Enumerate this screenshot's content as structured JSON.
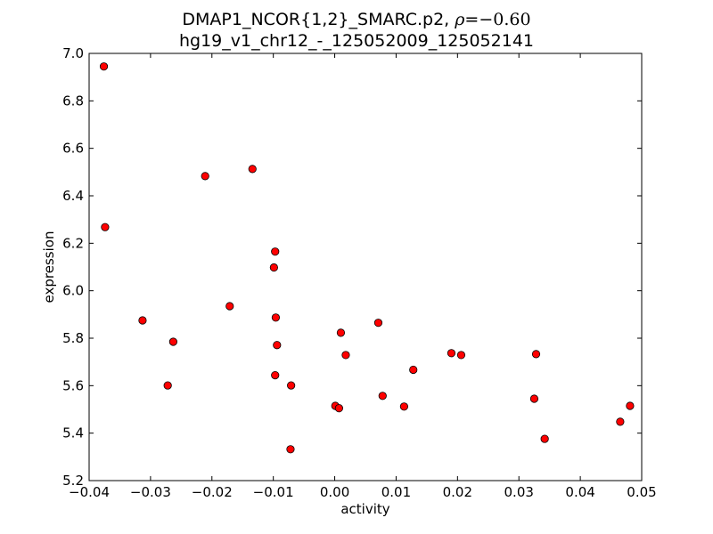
{
  "chart_data": {
    "type": "scatter",
    "title_line1_prefix": "DMAP1_NCOR{1,2}_SMARC.p2, ",
    "title_rho_symbol": "ρ",
    "title_rho_value": "=−0.60",
    "title_line2": "hg19_v1_chr12_-_125052009_125052141",
    "xlabel": "activity",
    "ylabel": "expression",
    "xlim": [
      -0.04,
      0.05
    ],
    "ylim": [
      5.2,
      7.0
    ],
    "xticks": [
      -0.04,
      -0.03,
      -0.02,
      -0.01,
      0.0,
      0.01,
      0.02,
      0.03,
      0.04,
      0.05
    ],
    "xtick_labels": [
      "−0.04",
      "−0.03",
      "−0.02",
      "−0.01",
      "0.00",
      "0.01",
      "0.02",
      "0.03",
      "0.04",
      "0.05"
    ],
    "yticks": [
      5.2,
      5.4,
      5.6,
      5.8,
      6.0,
      6.2,
      6.4,
      6.6,
      6.8,
      7.0
    ],
    "ytick_labels": [
      "5.2",
      "5.4",
      "5.6",
      "5.8",
      "6.0",
      "6.2",
      "6.4",
      "6.6",
      "6.8",
      "7.0"
    ],
    "grid": false,
    "marker_color": "#ff0000",
    "marker_edge_color": "#000000",
    "points": [
      {
        "x": -0.0376,
        "y": 6.945
      },
      {
        "x": -0.0374,
        "y": 6.268
      },
      {
        "x": -0.0313,
        "y": 5.875
      },
      {
        "x": -0.0263,
        "y": 5.785
      },
      {
        "x": -0.0272,
        "y": 5.601
      },
      {
        "x": -0.0211,
        "y": 6.483
      },
      {
        "x": -0.0171,
        "y": 5.935
      },
      {
        "x": -0.0134,
        "y": 6.513
      },
      {
        "x": -0.0097,
        "y": 6.165
      },
      {
        "x": -0.0099,
        "y": 6.098
      },
      {
        "x": -0.0096,
        "y": 5.887
      },
      {
        "x": -0.0094,
        "y": 5.771
      },
      {
        "x": -0.0097,
        "y": 5.644
      },
      {
        "x": -0.0071,
        "y": 5.601
      },
      {
        "x": -0.0072,
        "y": 5.332
      },
      {
        "x": 0.0001,
        "y": 5.515
      },
      {
        "x": 0.0007,
        "y": 5.505
      },
      {
        "x": 0.001,
        "y": 5.823
      },
      {
        "x": 0.0018,
        "y": 5.729
      },
      {
        "x": 0.0071,
        "y": 5.865
      },
      {
        "x": 0.0078,
        "y": 5.557
      },
      {
        "x": 0.0113,
        "y": 5.512
      },
      {
        "x": 0.0128,
        "y": 5.667
      },
      {
        "x": 0.019,
        "y": 5.737
      },
      {
        "x": 0.0206,
        "y": 5.729
      },
      {
        "x": 0.0325,
        "y": 5.545
      },
      {
        "x": 0.0328,
        "y": 5.733
      },
      {
        "x": 0.0342,
        "y": 5.376
      },
      {
        "x": 0.0465,
        "y": 5.448
      },
      {
        "x": 0.0481,
        "y": 5.515
      }
    ]
  }
}
